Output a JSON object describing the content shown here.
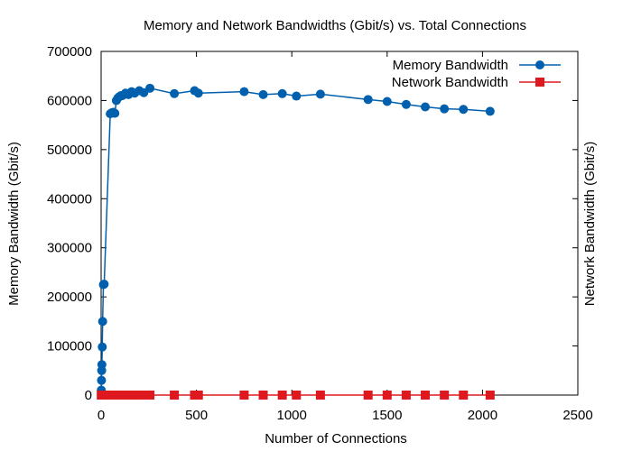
{
  "chart_data": {
    "type": "line",
    "title": "Memory and Network Bandwidths (Gbit/s) vs. Total Connections",
    "xlabel": "Number of Connections",
    "ylabel": "Memory Bandwidth (Gbit/s)",
    "y2label": "Network Bandwidth (Gbit/s)",
    "xlim": [
      0,
      2500
    ],
    "ylim": [
      0,
      700000
    ],
    "xticks": [
      0,
      500,
      1000,
      1500,
      2000,
      2500
    ],
    "yticks": [
      0,
      100000,
      200000,
      300000,
      400000,
      500000,
      600000,
      700000
    ],
    "grid": false,
    "legend_position": "top-right",
    "colors": {
      "ylabel": "#9400d3",
      "y2label": "#009e73",
      "memory": "#0060ad",
      "network": "#dd181f"
    },
    "series": [
      {
        "name": "Memory Bandwidth",
        "marker": "circle",
        "x": [
          1,
          2,
          3,
          4,
          6,
          8,
          12,
          16,
          48,
          56,
          64,
          72,
          80,
          88,
          96,
          104,
          112,
          128,
          144,
          160,
          176,
          200,
          224,
          256,
          384,
          490,
          510,
          750,
          850,
          950,
          1024,
          1150,
          1400,
          1500,
          1600,
          1700,
          1800,
          1900,
          2040
        ],
        "y": [
          10000,
          30000,
          50000,
          62000,
          98000,
          150000,
          225000,
          226000,
          573000,
          575000,
          576000,
          574000,
          600000,
          605000,
          608000,
          610000,
          610000,
          615000,
          612000,
          618000,
          615000,
          620000,
          616000,
          625000,
          614000,
          620000,
          615000,
          618000,
          612000,
          614000,
          609000,
          613000,
          602000,
          598000,
          592000,
          587000,
          583000,
          582000,
          578000
        ]
      },
      {
        "name": "Network Bandwidth",
        "marker": "square",
        "x": [
          1,
          2,
          4,
          8,
          16,
          32,
          48,
          64,
          80,
          96,
          112,
          128,
          144,
          160,
          176,
          200,
          224,
          256,
          384,
          490,
          510,
          750,
          850,
          950,
          1024,
          1150,
          1400,
          1500,
          1600,
          1700,
          1800,
          1900,
          2040
        ],
        "y": [
          0,
          0,
          0,
          0,
          0,
          0,
          0,
          0,
          0,
          0,
          0,
          0,
          0,
          0,
          0,
          0,
          0,
          0,
          0,
          0,
          0,
          0,
          0,
          0,
          0,
          0,
          0,
          0,
          0,
          0,
          0,
          0,
          0
        ]
      }
    ]
  }
}
